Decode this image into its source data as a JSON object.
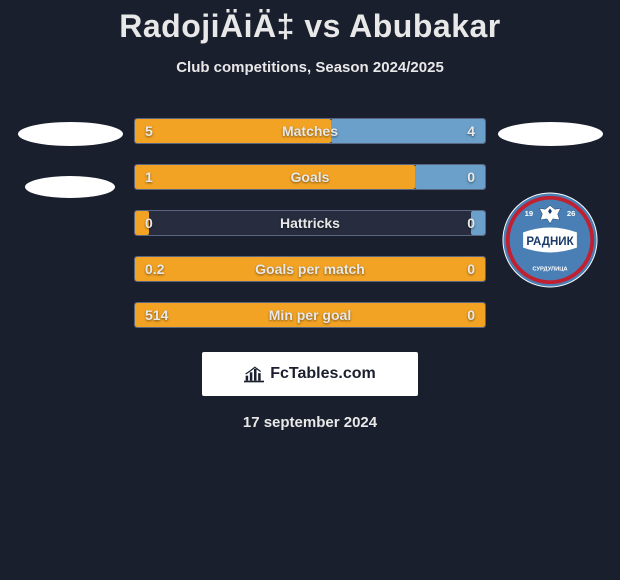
{
  "header": {
    "title": "RadojiÄiÄ‡ vs Abubakar",
    "subtitle": "Club competitions, Season 2024/2025"
  },
  "chart": {
    "left_color": "#f2a324",
    "right_color": "#6aa0c9",
    "border_color": "#5a6580",
    "row_bg": "#272d3f",
    "text_color": "#e8e8e8",
    "label_fontsize": 14,
    "rows": [
      {
        "label": "Matches",
        "left_val": "5",
        "right_val": "4",
        "left_pct": 56,
        "right_pct": 44
      },
      {
        "label": "Goals",
        "left_val": "1",
        "right_val": "0",
        "left_pct": 80,
        "right_pct": 20
      },
      {
        "label": "Hattricks",
        "left_val": "0",
        "right_val": "0",
        "left_pct": 4,
        "right_pct": 4
      },
      {
        "label": "Goals per match",
        "left_val": "0.2",
        "right_val": "0",
        "left_pct": 100,
        "right_pct": 0
      },
      {
        "label": "Min per goal",
        "left_val": "514",
        "right_val": "0",
        "left_pct": 100,
        "right_pct": 0
      }
    ]
  },
  "decor": {
    "ellipse_color": "#ffffff"
  },
  "logo": {
    "bg": "#4a7fb5",
    "border": "#c02030",
    "stripe": "#ffffff",
    "text": "РАДНИК",
    "subtext": "СУРДУЛИЦА",
    "year_left": "19",
    "year_right": "26"
  },
  "attribution": {
    "text": "FcTables.com",
    "bg": "#ffffff",
    "text_color": "#1a1f2e"
  },
  "footer": {
    "date": "17 september 2024"
  }
}
